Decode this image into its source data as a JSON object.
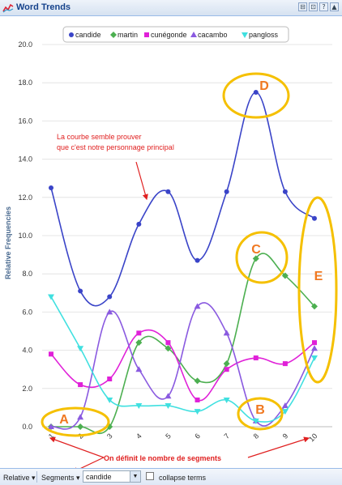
{
  "window": {
    "title": "Word Trends",
    "buttons": [
      "⊟",
      "⊡",
      "?",
      "▲"
    ]
  },
  "toolbar": {
    "relative_label": "Relative",
    "segments_label": "Segments",
    "term_value": "candide",
    "collapse_label": "collapse terms"
  },
  "chart_data": {
    "type": "line",
    "ylabel": "Relative Frequencies",
    "ylim": [
      0,
      20
    ],
    "yticks": [
      "0.0",
      "2.0",
      "4.0",
      "6.0",
      "8.0",
      "10.0",
      "12.0",
      "14.0",
      "16.0",
      "18.0",
      "20.0"
    ],
    "x": [
      "1",
      "2",
      "3",
      "4",
      "5",
      "6",
      "7",
      "8",
      "9",
      "10"
    ],
    "series": [
      {
        "name": "candide",
        "color": "#3a44c8",
        "marker": "circle",
        "values": [
          12.5,
          7.1,
          6.8,
          10.6,
          12.3,
          8.7,
          12.3,
          17.5,
          12.3,
          10.9
        ]
      },
      {
        "name": "martin",
        "color": "#4caf50",
        "marker": "diamond",
        "values": [
          0.0,
          0.0,
          0.0,
          4.4,
          4.1,
          2.4,
          3.3,
          8.8,
          7.9,
          6.3
        ]
      },
      {
        "name": "cunégonde",
        "color": "#e020d8",
        "marker": "square",
        "values": [
          3.8,
          2.2,
          2.5,
          4.9,
          4.4,
          1.4,
          3.0,
          3.6,
          3.3,
          4.4
        ]
      },
      {
        "name": "cacambo",
        "color": "#8a5ae0",
        "marker": "triangle",
        "values": [
          0.0,
          0.5,
          6.0,
          3.0,
          1.6,
          6.3,
          4.9,
          0.3,
          1.1,
          4.1
        ]
      },
      {
        "name": "pangloss",
        "color": "#40e0e0",
        "marker": "triangle-down",
        "values": [
          6.8,
          4.1,
          1.4,
          1.1,
          1.1,
          0.8,
          1.4,
          0.3,
          0.8,
          3.6
        ]
      }
    ],
    "legend_position": "top-center",
    "annotations": {
      "note": "La courbe semble prouver que c'est notre personnage principal",
      "note_lines": [
        "La courbe semble prouver",
        "que c'est notre personnage principal"
      ],
      "segments_note": "On définit le nombre de segments",
      "letters": [
        "A",
        "B",
        "C",
        "D",
        "E"
      ],
      "note_color": "#e02020",
      "letter_color": "#f07820",
      "ellipse_color": "#f5c000"
    }
  }
}
